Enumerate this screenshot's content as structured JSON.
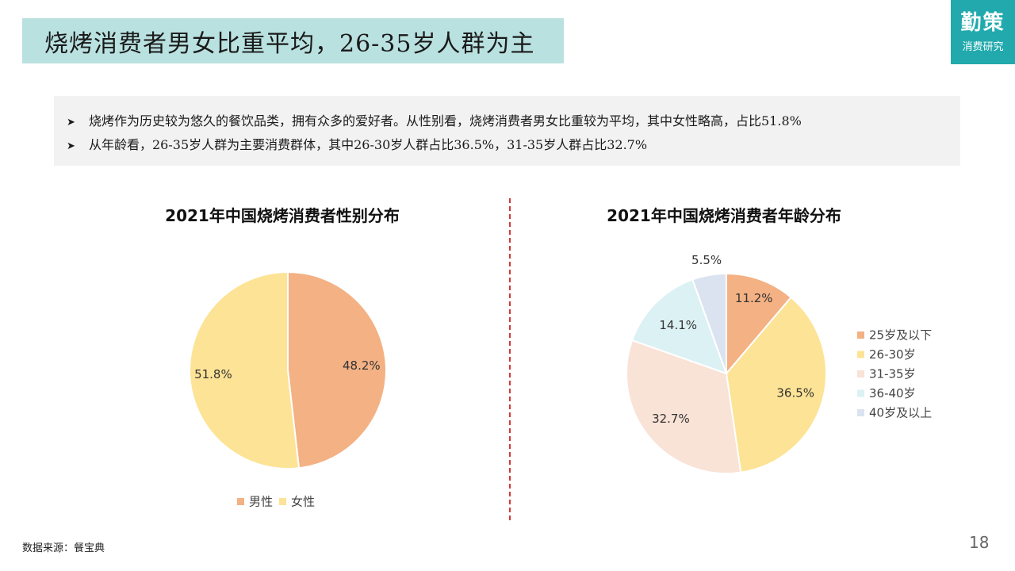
{
  "header": {
    "title": "烧烤消费者男女比重平均，26-35岁人群为主"
  },
  "logo": {
    "main": "勤策",
    "sub": "消费研究"
  },
  "summary": {
    "bullets": [
      "烧烤作为历史较为悠久的餐饮品类，拥有众多的爱好者。从性别看，烧烤消费者男女比重较为平均，其中女性略高，占比51.8%",
      "从年龄看，26-35岁人群为主要消费群体，其中26-30岁人群占比36.5%，31-35岁人群占比32.7%"
    ]
  },
  "footer": {
    "source": "数据来源：餐宝典",
    "page_number": "18"
  },
  "chart_data": [
    {
      "type": "pie",
      "title": "2021年中国烧烤消费者性别分布",
      "categories": [
        "男性",
        "女性"
      ],
      "values": [
        48.2,
        51.8
      ],
      "labels": [
        "48.2%",
        "51.8%"
      ],
      "colors": [
        "#f3b184",
        "#fde396"
      ],
      "legend_position": "bottom"
    },
    {
      "type": "pie",
      "title": "2021年中国烧烤消费者年龄分布",
      "categories": [
        "25岁及以下",
        "26-30岁",
        "31-35岁",
        "36-40岁",
        "40岁及以上"
      ],
      "values": [
        11.2,
        36.5,
        32.7,
        14.1,
        5.5
      ],
      "labels": [
        "11.2%",
        "36.5%",
        "32.7%",
        "14.1%",
        "5.5%"
      ],
      "colors": [
        "#f3b184",
        "#fde396",
        "#f9e2d6",
        "#dcf1f3",
        "#dbe3f1"
      ],
      "legend_position": "right"
    }
  ]
}
